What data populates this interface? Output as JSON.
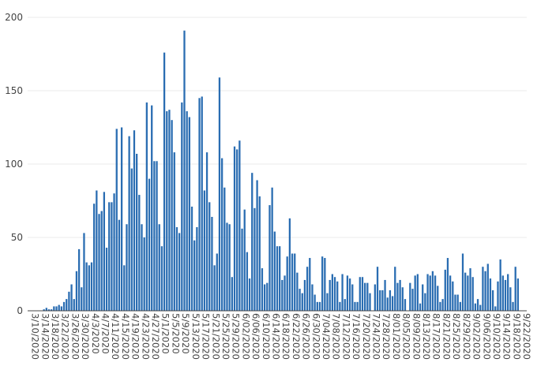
{
  "chart_data": {
    "type": "bar",
    "title": "",
    "xlabel": "",
    "ylabel": "",
    "ylim": [
      0,
      200
    ],
    "yticks": [
      0,
      50,
      100,
      150,
      200
    ],
    "start_date": "2020-03-10",
    "end_date": "2020-09-24",
    "xtick_labels": [
      "3/10/2020",
      "3/14/2020",
      "3/18/2020",
      "3/22/2020",
      "3/26/2020",
      "3/30/2020",
      "4/3/2020",
      "4/7/2020",
      "4/11/2020",
      "4/15/2020",
      "4/19/2020",
      "4/23/2020",
      "4/27/2020",
      "5/1/2020",
      "5/5/2020",
      "5/9/2020",
      "5/13/2020",
      "5/17/2020",
      "5/21/2020",
      "5/25/2020",
      "5/29/2020",
      "6/02/2020",
      "6/06/2020",
      "6/10/2020",
      "6/14/2020",
      "6/18/2020",
      "6/22/2020",
      "6/26/2020",
      "6/30/2020",
      "7/04/2020",
      "7/08/2020",
      "7/12/2020",
      "7/16/2020",
      "7/20/2020",
      "7/24/2020",
      "7/28/2020",
      "8/01/2020",
      "8/05/2020",
      "8/09/2020",
      "8/13/2020",
      "8/17/2020",
      "8/21/2020",
      "8/25/2020",
      "8/29/2020",
      "9/02/2020",
      "9/06/2020",
      "9/10/2020",
      "9/14/2020",
      "9/18/2020",
      "9/22/2020"
    ],
    "grid": true,
    "bar_color": "#2a6db2",
    "values": [
      0,
      0,
      0,
      0,
      0,
      0,
      1,
      2,
      1,
      1,
      3,
      3,
      4,
      3,
      6,
      8,
      13,
      18,
      8,
      27,
      42,
      16,
      53,
      33,
      31,
      33,
      73,
      82,
      66,
      68,
      81,
      43,
      74,
      74,
      80,
      124,
      62,
      125,
      31,
      59,
      119,
      97,
      123,
      107,
      79,
      59,
      50,
      142,
      90,
      140,
      102,
      102,
      59,
      44,
      176,
      136,
      137,
      130,
      108,
      57,
      53,
      142,
      191,
      136,
      132,
      71,
      48,
      57,
      145,
      146,
      82,
      108,
      74,
      64,
      31,
      39,
      159,
      104,
      84,
      60,
      59,
      23,
      112,
      110,
      116,
      56,
      69,
      40,
      22,
      94,
      70,
      89,
      78,
      29,
      18,
      19,
      72,
      84,
      54,
      44,
      44,
      21,
      24,
      37,
      63,
      39,
      39,
      26,
      15,
      12,
      21,
      30,
      36,
      18,
      11,
      6,
      6,
      37,
      36,
      12,
      21,
      25,
      23,
      20,
      6,
      25,
      8,
      24,
      22,
      18,
      6,
      6,
      23,
      23,
      19,
      19,
      12,
      0,
      18,
      30,
      14,
      14,
      21,
      9,
      14,
      10,
      30,
      19,
      21,
      16,
      8,
      0,
      19,
      15,
      24,
      25,
      5,
      18,
      12,
      25,
      24,
      27,
      24,
      17,
      6,
      8,
      28,
      36,
      24,
      20,
      11,
      11,
      6,
      39,
      26,
      24,
      29,
      23,
      5,
      8,
      4,
      30,
      27,
      32,
      22,
      14,
      3,
      20,
      35,
      24,
      21,
      25,
      16,
      6,
      30,
      22
    ]
  }
}
